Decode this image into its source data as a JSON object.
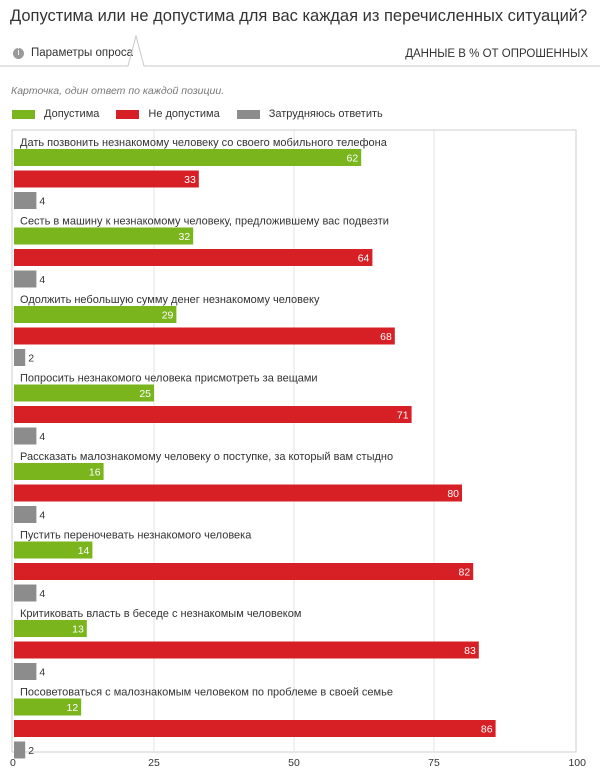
{
  "title": "Допустима или не допустима для вас каждая из перечисленных ситуаций?",
  "params_label": "Параметры опроса",
  "params_icon": "info-icon",
  "units_label": "ДАННЫЕ В % ОТ ОПРОШЕННЫХ",
  "note": "Карточка, один ответ по каждой позиции.",
  "chart_data": {
    "type": "bar",
    "orientation": "horizontal",
    "xlim": [
      0,
      100
    ],
    "xticks": [
      0,
      25,
      50,
      75,
      100
    ],
    "grid": true,
    "legend_position": "top-left",
    "categories": [
      "Дать позвонить незнакомому человеку со своего мобильного телефона",
      "Сесть в машину к незнакомому человеку, предложившему вас подвезти",
      "Одолжить небольшую сумму денег незнакомому человеку",
      "Попросить незнакомого человека присмотреть за вещами",
      "Рассказать малознакомому человеку о поступке, за который вам стыдно",
      "Пустить переночевать незнакомого человека",
      "Критиковать власть в беседе с незнакомым человеком",
      "Посоветоваться с малознакомым человеком по проблеме в своей семье"
    ],
    "series": [
      {
        "name": "Допустима",
        "color": "#7ab51d",
        "values": [
          62,
          32,
          29,
          25,
          16,
          14,
          13,
          12
        ]
      },
      {
        "name": "Не допустима",
        "color": "#d71f26",
        "values": [
          33,
          64,
          68,
          71,
          80,
          82,
          83,
          86
        ]
      },
      {
        "name": "Затрудняюсь ответить",
        "color": "#8c8c8c",
        "values": [
          4,
          4,
          2,
          4,
          4,
          4,
          4,
          2
        ]
      }
    ]
  }
}
